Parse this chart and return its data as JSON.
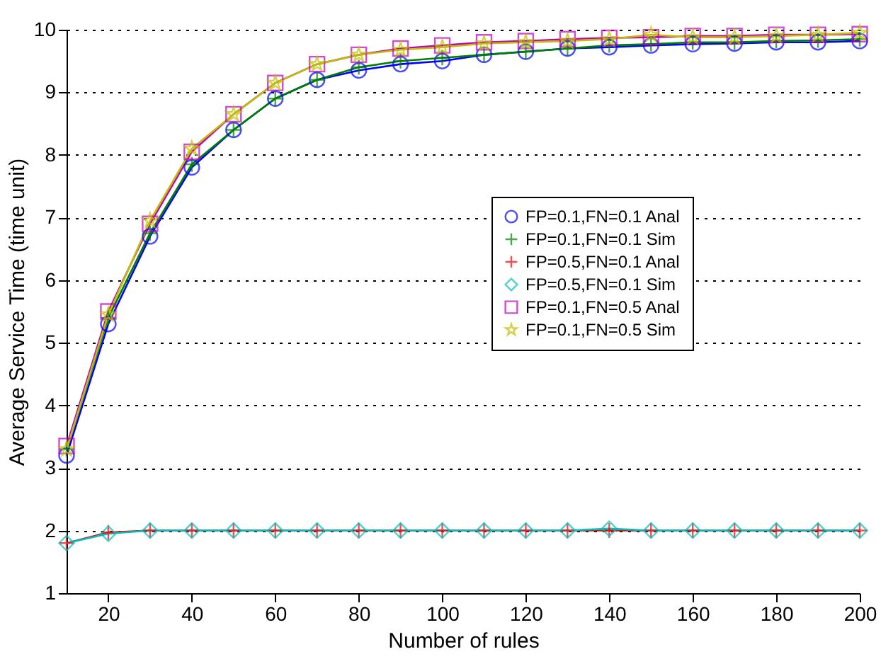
{
  "chart_data": {
    "type": "line",
    "xlabel": "Number of rules",
    "ylabel": "Average Service Time (time unit)",
    "x": [
      10,
      20,
      30,
      40,
      50,
      60,
      70,
      80,
      90,
      100,
      110,
      120,
      130,
      140,
      150,
      160,
      170,
      180,
      190,
      200
    ],
    "xlim": [
      10,
      200
    ],
    "xticks": [
      20,
      40,
      60,
      80,
      100,
      120,
      140,
      160,
      180,
      200
    ],
    "ylim": [
      1,
      10
    ],
    "yticks": [
      1,
      2,
      3,
      4,
      5,
      6,
      7,
      8,
      9,
      10
    ],
    "grid": "y",
    "legend": "right",
    "line_style": "solid",
    "series": [
      {
        "name": "FP=0.1,FN=0.1 Anal",
        "color": "#0000ff",
        "marker": "circle",
        "values": [
          3.2,
          5.3,
          6.7,
          7.8,
          8.4,
          8.9,
          9.2,
          9.35,
          9.45,
          9.5,
          9.6,
          9.65,
          9.7,
          9.72,
          9.75,
          9.77,
          9.78,
          9.8,
          9.8,
          9.82
        ]
      },
      {
        "name": "FP=0.1,FN=0.1 Sim",
        "color": "#008000",
        "marker": "cross",
        "values": [
          3.3,
          5.4,
          6.75,
          7.85,
          8.4,
          8.9,
          9.2,
          9.4,
          9.5,
          9.55,
          9.6,
          9.65,
          9.7,
          9.75,
          9.77,
          9.8,
          9.8,
          9.82,
          9.83,
          9.85
        ]
      },
      {
        "name": "FP=0.5,FN=0.1 Anal",
        "color": "#ff0000",
        "marker": "cross",
        "values": [
          1.8,
          1.97,
          2,
          2,
          2,
          2,
          2,
          2,
          2,
          2,
          2,
          2,
          2,
          2,
          2,
          2,
          2,
          2,
          2,
          2
        ]
      },
      {
        "name": "FP=0.5,FN=0.1 Sim",
        "color": "#00bfbf",
        "marker": "diamond",
        "values": [
          1.8,
          1.95,
          2,
          2,
          2,
          2,
          2,
          2,
          2,
          2,
          2,
          2,
          2,
          2.03,
          2,
          2,
          2,
          2,
          2,
          2
        ]
      },
      {
        "name": "FP=0.1,FN=0.5 Anal",
        "color": "#bf00bf",
        "marker": "square",
        "values": [
          3.35,
          5.5,
          6.9,
          8.05,
          8.65,
          9.15,
          9.45,
          9.6,
          9.7,
          9.75,
          9.8,
          9.82,
          9.85,
          9.87,
          9.88,
          9.9,
          9.9,
          9.92,
          9.92,
          9.93
        ]
      },
      {
        "name": "FP=0.1,FN=0.5 Sim",
        "color": "#bfbf00",
        "marker": "star",
        "values": [
          3.3,
          5.45,
          6.95,
          8.1,
          8.65,
          9.15,
          9.45,
          9.6,
          9.68,
          9.72,
          9.78,
          9.8,
          9.82,
          9.85,
          9.92,
          9.88,
          9.88,
          9.9,
          9.92,
          9.95
        ]
      }
    ]
  }
}
